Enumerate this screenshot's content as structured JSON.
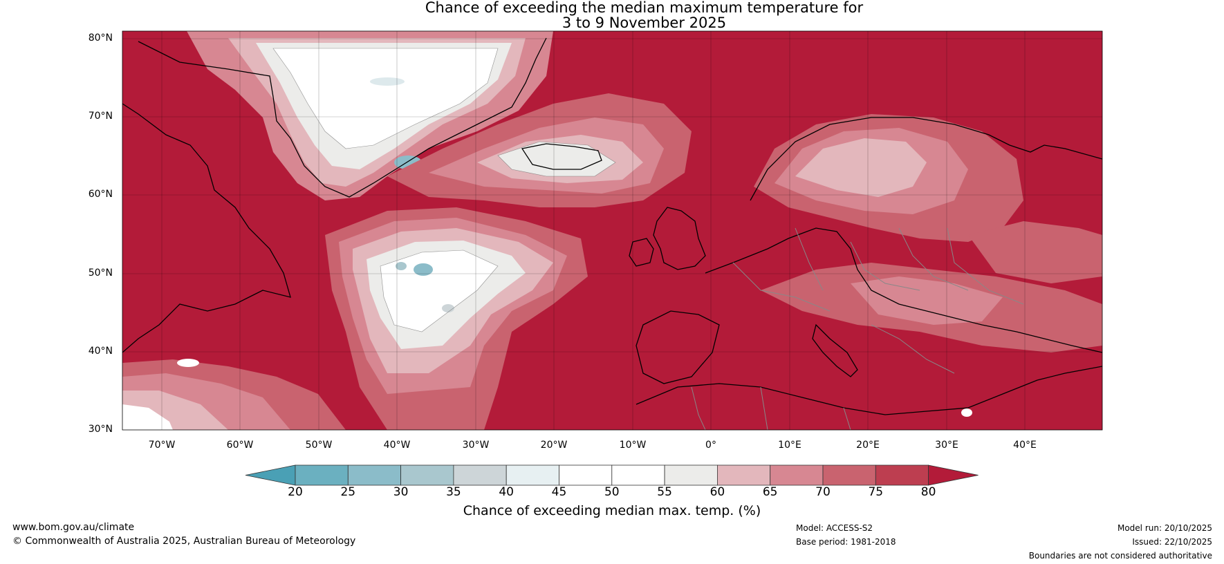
{
  "title": {
    "line1": "Chance of exceeding the median maximum temperature for",
    "line2": "3 to 9 November 2025"
  },
  "map": {
    "lat_labels": [
      "80°N",
      "70°N",
      "60°N",
      "50°N",
      "40°N",
      "30°N"
    ],
    "lon_labels": [
      "70°W",
      "60°W",
      "50°W",
      "40°W",
      "30°W",
      "20°W",
      "10°W",
      "0°",
      "10°E",
      "20°E",
      "30°E",
      "40°E"
    ],
    "lat_range": [
      30,
      81
    ],
    "lon_range": [
      -75,
      50
    ]
  },
  "colorbar": {
    "ticks": [
      "20",
      "25",
      "30",
      "35",
      "40",
      "45",
      "50",
      "55",
      "60",
      "65",
      "70",
      "75",
      "80"
    ],
    "colors": [
      "#4aa0b5",
      "#6bb0c0",
      "#8bbcc9",
      "#a9c7ce",
      "#cdd5d8",
      "#e7f0f2",
      "#ffffff",
      "#ffffff",
      "#ececea",
      "#e3b7bc",
      "#d78792",
      "#c9636f",
      "#bd3e50",
      "#b31b39"
    ],
    "label": "Chance of exceeding median max. temp. (%)"
  },
  "footer": {
    "url": "www.bom.gov.au/climate",
    "copyright": "© Commonwealth of Australia 2025, Australian Bureau of Meteorology",
    "model": "Model: ACCESS-S2",
    "base_period": "Base period: 1981-2018",
    "model_run": "Model run: 20/10/2025",
    "issued": "Issued: 22/10/2025",
    "disclaimer": "Boundaries are not considered authoritative"
  }
}
